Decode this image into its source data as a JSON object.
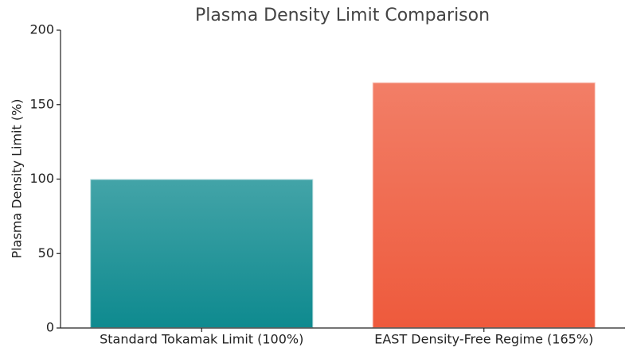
{
  "chart_data": {
    "type": "bar",
    "title": "Plasma Density Limit Comparison",
    "y_label": "Plasma Density Limit (%)",
    "categories": [
      "Standard Tokamak Limit (100%)",
      "EAST Density-Free Regime (165%)"
    ],
    "values": [
      100,
      165
    ],
    "colors": [
      "#0e8a8f",
      "#ee5a3c"
    ],
    "ylim": [
      0,
      200
    ],
    "yticks": [
      0,
      50,
      100,
      150,
      200
    ],
    "grid": false
  }
}
